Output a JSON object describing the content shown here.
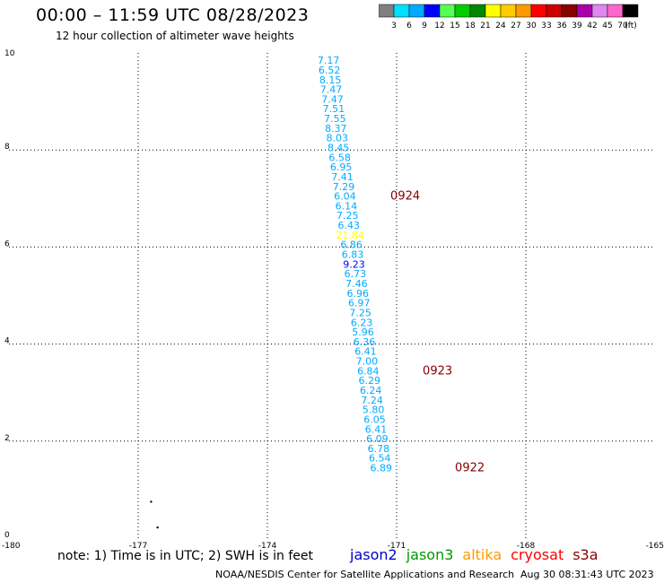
{
  "header": {
    "title": "00:00 – 11:59 UTC 08/28/2023",
    "subtitle": "12 hour collection of altimeter wave heights"
  },
  "legend": {
    "unit": "(ft)",
    "bins": [
      {
        "label": "3",
        "color": "#808080"
      },
      {
        "label": "6",
        "color": "#00e0ff"
      },
      {
        "label": "9",
        "color": "#00aaff"
      },
      {
        "label": "12",
        "color": "#0000ff"
      },
      {
        "label": "15",
        "color": "#55ff55"
      },
      {
        "label": "18",
        "color": "#00cc00"
      },
      {
        "label": "21",
        "color": "#008800"
      },
      {
        "label": "24",
        "color": "#ffff00"
      },
      {
        "label": "27",
        "color": "#ffcc00"
      },
      {
        "label": "30",
        "color": "#ff9900"
      },
      {
        "label": "33",
        "color": "#ff0000"
      },
      {
        "label": "36",
        "color": "#cc0000"
      },
      {
        "label": "39",
        "color": "#880000"
      },
      {
        "label": "42",
        "color": "#aa00aa"
      },
      {
        "label": "45",
        "color": "#dd88ee"
      },
      {
        "label": "70",
        "color": "#ff66cc"
      },
      {
        "label": "",
        "color": "#000000"
      }
    ]
  },
  "chart_data": {
    "type": "scatter",
    "xlim": [
      -180,
      -165
    ],
    "ylim": [
      0,
      10
    ],
    "x_ticks": [
      "-180",
      "-177",
      "-174",
      "-171",
      "-168",
      "-165"
    ],
    "y_ticks": [
      "0",
      "2",
      "4",
      "6",
      "8",
      "10"
    ],
    "grid": true,
    "points": [
      {
        "x": -172.58,
        "y": 9.85,
        "label": "7.17",
        "color": "#00aaff"
      },
      {
        "x": -172.56,
        "y": 9.65,
        "label": "6.52",
        "color": "#00aaff"
      },
      {
        "x": -172.54,
        "y": 9.45,
        "label": "8.15",
        "color": "#00aaff"
      },
      {
        "x": -172.52,
        "y": 9.25,
        "label": "7.47",
        "color": "#00aaff"
      },
      {
        "x": -172.49,
        "y": 9.05,
        "label": "7.47",
        "color": "#00aaff"
      },
      {
        "x": -172.46,
        "y": 8.85,
        "label": "7.51",
        "color": "#00aaff"
      },
      {
        "x": -172.43,
        "y": 8.65,
        "label": "7.55",
        "color": "#00aaff"
      },
      {
        "x": -172.41,
        "y": 8.45,
        "label": "8.37",
        "color": "#00aaff"
      },
      {
        "x": -172.38,
        "y": 8.25,
        "label": "8.03",
        "color": "#00aaff"
      },
      {
        "x": -172.35,
        "y": 8.05,
        "label": "8.45",
        "color": "#00aaff"
      },
      {
        "x": -172.32,
        "y": 7.85,
        "label": "6.58",
        "color": "#00aaff"
      },
      {
        "x": -172.29,
        "y": 7.65,
        "label": "6.95",
        "color": "#00aaff"
      },
      {
        "x": -172.26,
        "y": 7.45,
        "label": "7.41",
        "color": "#00aaff"
      },
      {
        "x": -172.23,
        "y": 7.25,
        "label": "7.29",
        "color": "#00aaff"
      },
      {
        "x": -172.2,
        "y": 7.05,
        "label": "6.04",
        "color": "#00aaff"
      },
      {
        "x": -172.17,
        "y": 6.85,
        "label": "6.14",
        "color": "#00aaff"
      },
      {
        "x": -172.14,
        "y": 6.65,
        "label": "7.25",
        "color": "#00aaff"
      },
      {
        "x": -172.11,
        "y": 6.45,
        "label": "6.43",
        "color": "#00aaff"
      },
      {
        "x": -172.08,
        "y": 6.25,
        "label": "21.84",
        "color": "#ffff00"
      },
      {
        "x": -172.05,
        "y": 6.05,
        "label": "6.86",
        "color": "#00aaff"
      },
      {
        "x": -172.02,
        "y": 5.85,
        "label": "6.83",
        "color": "#00aaff"
      },
      {
        "x": -171.99,
        "y": 5.65,
        "label": "9.23",
        "color": "#0000ff"
      },
      {
        "x": -171.96,
        "y": 5.45,
        "label": "6.73",
        "color": "#00aaff"
      },
      {
        "x": -171.93,
        "y": 5.25,
        "label": "7.46",
        "color": "#00aaff"
      },
      {
        "x": -171.9,
        "y": 5.05,
        "label": "6.96",
        "color": "#00aaff"
      },
      {
        "x": -171.87,
        "y": 4.85,
        "label": "6.97",
        "color": "#00aaff"
      },
      {
        "x": -171.84,
        "y": 4.65,
        "label": "7.25",
        "color": "#00aaff"
      },
      {
        "x": -171.81,
        "y": 4.45,
        "label": "6.23",
        "color": "#00aaff"
      },
      {
        "x": -171.78,
        "y": 4.25,
        "label": "5.96",
        "color": "#00aaff"
      },
      {
        "x": -171.75,
        "y": 4.05,
        "label": "6.36",
        "color": "#00aaff"
      },
      {
        "x": -171.72,
        "y": 3.85,
        "label": "6.41",
        "color": "#00aaff"
      },
      {
        "x": -171.69,
        "y": 3.65,
        "label": "7.00",
        "color": "#00aaff"
      },
      {
        "x": -171.66,
        "y": 3.45,
        "label": "6.84",
        "color": "#00aaff"
      },
      {
        "x": -171.63,
        "y": 3.25,
        "label": "6.29",
        "color": "#00aaff"
      },
      {
        "x": -171.6,
        "y": 3.05,
        "label": "6.24",
        "color": "#00aaff"
      },
      {
        "x": -171.57,
        "y": 2.85,
        "label": "7.24",
        "color": "#00aaff"
      },
      {
        "x": -171.54,
        "y": 2.65,
        "label": "5.80",
        "color": "#00aaff"
      },
      {
        "x": -171.51,
        "y": 2.45,
        "label": "6.05",
        "color": "#00aaff"
      },
      {
        "x": -171.48,
        "y": 2.25,
        "label": "6.41",
        "color": "#00aaff"
      },
      {
        "x": -171.45,
        "y": 2.05,
        "label": "6.09",
        "color": "#00aaff"
      },
      {
        "x": -171.42,
        "y": 1.85,
        "label": "6.78",
        "color": "#00aaff"
      },
      {
        "x": -171.39,
        "y": 1.65,
        "label": "6.54",
        "color": "#00aaff"
      },
      {
        "x": -171.36,
        "y": 1.45,
        "label": "6.89",
        "color": "#00aaff"
      }
    ],
    "time_labels": [
      {
        "x": -170.8,
        "y": 7.05,
        "label": "0924",
        "color": "#880000"
      },
      {
        "x": -170.05,
        "y": 3.45,
        "label": "0923",
        "color": "#880000"
      },
      {
        "x": -169.3,
        "y": 1.45,
        "label": "0922",
        "color": "#880000"
      }
    ],
    "dots": [
      {
        "x": -176.7,
        "y": 0.75
      },
      {
        "x": -176.55,
        "y": 0.22
      }
    ]
  },
  "footer": {
    "note": "note: 1) Time is in UTC; 2) SWH is in feet",
    "satellites": [
      {
        "name": "jason2",
        "color": "#0000cc"
      },
      {
        "name": "jason3",
        "color": "#009900"
      },
      {
        "name": "altika",
        "color": "#ff9900"
      },
      {
        "name": "cryosat",
        "color": "#ff0000"
      },
      {
        "name": "s3a",
        "color": "#880000"
      }
    ],
    "credit": "NOAA/NESDIS Center for Satellite Applications and Research",
    "timestamp": "Aug 30 08:31:43 UTC 2023"
  }
}
